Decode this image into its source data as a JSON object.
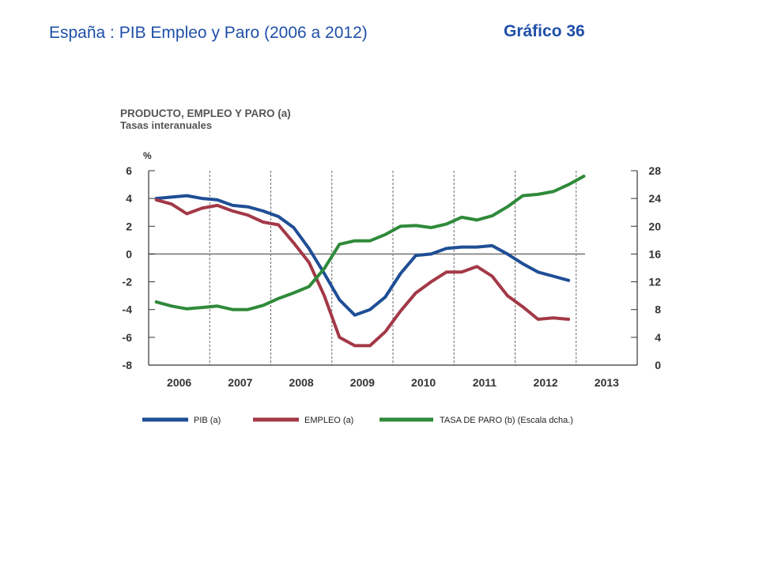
{
  "slide": {
    "title": "España : PIB  Empleo y Paro (2006 a 2012)",
    "label": "Gráfico 36"
  },
  "chart_data": {
    "type": "line",
    "title": "PRODUCTO, EMPLEO Y PARO (a)",
    "subtitle": "Tasas interanuales",
    "y_unit": "%",
    "x_ticks": [
      "2006",
      "2007",
      "2008",
      "2009",
      "2010",
      "2011",
      "2012",
      "2013"
    ],
    "y_left": {
      "min": -8,
      "max": 6,
      "ticks": [
        6,
        4,
        2,
        0,
        -2,
        -4,
        -6,
        -8
      ],
      "scale": "linear"
    },
    "y_right": {
      "min": 0,
      "max": 28,
      "ticks": [
        28,
        24,
        20,
        16,
        12,
        8,
        4,
        0
      ],
      "scale": "linear"
    },
    "grid": "vertical dashed",
    "legend_position": "bottom",
    "colors": {
      "pib": "#1f4e96",
      "empleo": "#a33847",
      "paro": "#2f8a3a",
      "zero_line": "#7a7a7a"
    },
    "series": [
      {
        "name": "PIB (a)",
        "axis": "left",
        "color": "#1f4e96",
        "x": [
          "2006-Q1",
          "2006-Q2",
          "2006-Q3",
          "2006-Q4",
          "2007-Q1",
          "2007-Q2",
          "2007-Q3",
          "2007-Q4",
          "2008-Q1",
          "2008-Q2",
          "2008-Q3",
          "2008-Q4",
          "2009-Q1",
          "2009-Q2",
          "2009-Q3",
          "2009-Q4",
          "2010-Q1",
          "2010-Q2",
          "2010-Q3",
          "2010-Q4",
          "2011-Q1",
          "2011-Q2",
          "2011-Q3",
          "2011-Q4",
          "2012-Q1",
          "2012-Q2",
          "2012-Q3",
          "2012-Q4"
        ],
        "values": [
          4.0,
          4.1,
          4.2,
          4.0,
          3.9,
          3.5,
          3.4,
          3.1,
          2.7,
          1.9,
          0.4,
          -1.4,
          -3.3,
          -4.4,
          -4.0,
          -3.1,
          -1.4,
          -0.1,
          0.0,
          0.4,
          0.5,
          0.5,
          0.6,
          0.0,
          -0.7,
          -1.3,
          -1.6,
          -1.9
        ]
      },
      {
        "name": "EMPLEO (a)",
        "axis": "left",
        "color": "#a33847",
        "x": [
          "2006-Q1",
          "2006-Q2",
          "2006-Q3",
          "2006-Q4",
          "2007-Q1",
          "2007-Q2",
          "2007-Q3",
          "2007-Q4",
          "2008-Q1",
          "2008-Q2",
          "2008-Q3",
          "2008-Q4",
          "2009-Q1",
          "2009-Q2",
          "2009-Q3",
          "2009-Q4",
          "2010-Q1",
          "2010-Q2",
          "2010-Q3",
          "2010-Q4",
          "2011-Q1",
          "2011-Q2",
          "2011-Q3",
          "2011-Q4",
          "2012-Q1",
          "2012-Q2",
          "2012-Q3",
          "2012-Q4"
        ],
        "values": [
          3.9,
          3.6,
          2.9,
          3.3,
          3.5,
          3.1,
          2.8,
          2.3,
          2.1,
          0.8,
          -0.6,
          -3.0,
          -6.0,
          -6.6,
          -6.6,
          -5.6,
          -4.1,
          -2.8,
          -2.0,
          -1.3,
          -1.3,
          -0.9,
          -1.6,
          -3.0,
          -3.8,
          -4.7,
          -4.6,
          -4.7
        ]
      },
      {
        "name": "TASA DE PARO (b) (Escala dcha.)",
        "axis": "right",
        "color": "#2f8a3a",
        "x": [
          "2006-Q1",
          "2006-Q2",
          "2006-Q3",
          "2006-Q4",
          "2007-Q1",
          "2007-Q2",
          "2007-Q3",
          "2007-Q4",
          "2008-Q1",
          "2008-Q2",
          "2008-Q3",
          "2008-Q4",
          "2009-Q1",
          "2009-Q2",
          "2009-Q3",
          "2009-Q4",
          "2010-Q1",
          "2010-Q2",
          "2010-Q3",
          "2010-Q4",
          "2011-Q1",
          "2011-Q2",
          "2011-Q3",
          "2011-Q4",
          "2012-Q1",
          "2012-Q2",
          "2012-Q3",
          "2012-Q4",
          "2013-Q1"
        ],
        "values": [
          9.1,
          8.5,
          8.1,
          8.3,
          8.5,
          8.0,
          8.0,
          8.6,
          9.6,
          10.4,
          11.3,
          13.9,
          17.4,
          17.9,
          17.9,
          18.8,
          20.0,
          20.1,
          19.8,
          20.3,
          21.3,
          20.9,
          21.5,
          22.8,
          24.4,
          24.6,
          25.0,
          26.0,
          27.2
        ]
      }
    ]
  }
}
